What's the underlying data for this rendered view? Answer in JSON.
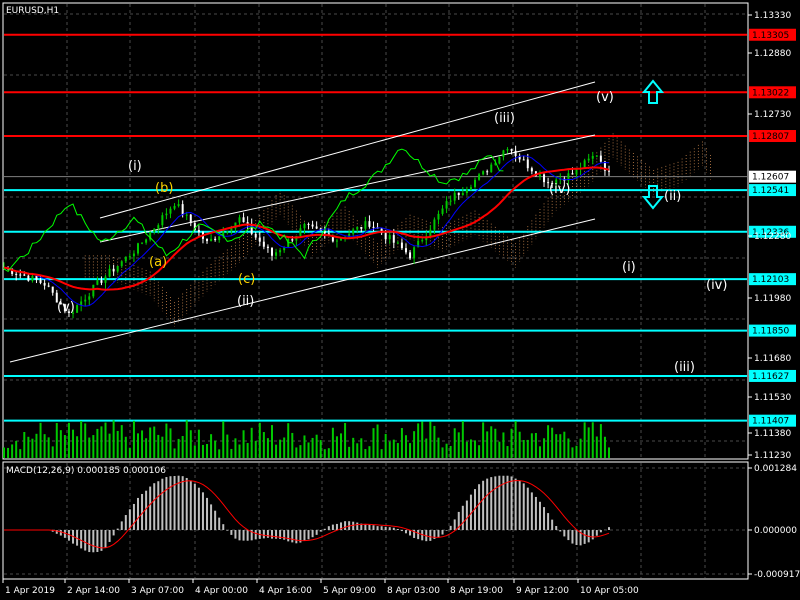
{
  "window": {
    "title": "EURUSD,H1"
  },
  "colors": {
    "background": "#000000",
    "grid": "#4a4a4a",
    "bull_candle": "#00c800",
    "bear_candle": "#ffffff",
    "resistance": "#ff0000",
    "support": "#00ffff",
    "ma_fast": "#0000ff",
    "ma_slow": "#ff0000",
    "chikou": "#00ff00",
    "channel": "#ffffff",
    "cloud": "#f4a460",
    "volume": "#00c800",
    "macd_hist": "#c0c0c0",
    "macd_signal": "#ff0000"
  },
  "chart_data": [
    {
      "type": "candlestick",
      "title": "EURUSD,H1",
      "y_ticks": [
        "1.13330",
        "1.12880",
        "1.12730",
        "1.12280",
        "1.11980",
        "1.11680",
        "1.11530",
        "1.11380",
        "1.11230"
      ],
      "x_ticks": [
        "1 Apr 2019",
        "2 Apr 14:00",
        "3 Apr 07:00",
        "4 Apr 00:00",
        "4 Apr 16:00",
        "5 Apr 09:00",
        "8 Apr 03:00",
        "8 Apr 19:00",
        "9 Apr 12:00",
        "10 Apr 05:00"
      ],
      "ylim": [
        1.1123,
        1.1333
      ],
      "resistance_levels": [
        {
          "label": "1.13305",
          "value": 1.13305
        },
        {
          "label": "1.13022",
          "value": 1.13022
        },
        {
          "label": "1.12807",
          "value": 1.12807
        }
      ],
      "support_levels": [
        {
          "label": "1.12541",
          "value": 1.12541
        },
        {
          "label": "1.12336",
          "value": 1.12336
        },
        {
          "label": "1.12103",
          "value": 1.12103
        },
        {
          "label": "1.11850",
          "value": 1.1185
        },
        {
          "label": "1.11627",
          "value": 1.11627
        },
        {
          "label": "1.11407",
          "value": 1.11407
        }
      ],
      "current_price": {
        "label": "1.12607",
        "value": 1.12607
      },
      "wave_labels": [
        {
          "text": "(i)",
          "kind": "white"
        },
        {
          "text": "(b)",
          "kind": "yellow"
        },
        {
          "text": "(a)",
          "kind": "yellow"
        },
        {
          "text": "(c)",
          "kind": "yellow"
        },
        {
          "text": "(ii)",
          "kind": "white"
        },
        {
          "text": "(v)",
          "kind": "white"
        },
        {
          "text": "(iii)",
          "kind": "white"
        },
        {
          "text": "(iv)",
          "kind": "white"
        },
        {
          "text": "(v)",
          "kind": "white"
        },
        {
          "text": "(ii)",
          "kind": "white"
        },
        {
          "text": "(i)",
          "kind": "white"
        },
        {
          "text": "(iv)",
          "kind": "white"
        },
        {
          "text": "(iii)",
          "kind": "white"
        }
      ]
    },
    {
      "type": "macd",
      "title": "MACD(12,26,9) 0.000185 0.000106",
      "y_ticks": [
        "0.001284",
        "0.000000",
        "-0.000917"
      ],
      "ylim": [
        -0.000917,
        0.001284
      ]
    }
  ]
}
